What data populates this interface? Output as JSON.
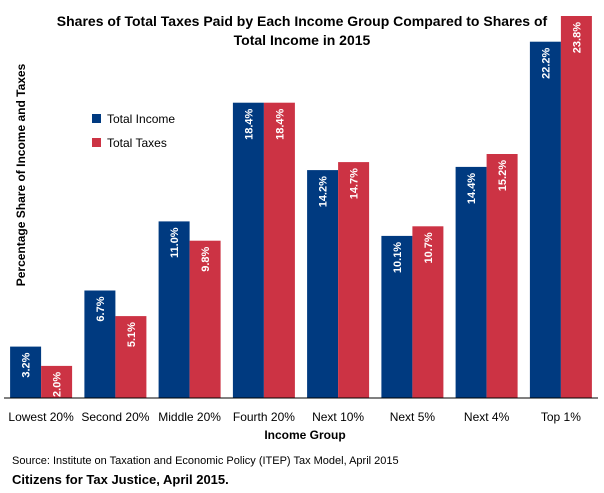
{
  "chart_data": {
    "type": "bar",
    "title_lines": [
      "Shares of Total Taxes Paid by Each Income Group Compared to Shares of",
      "Total Income in 2015"
    ],
    "xlabel": "Income Group",
    "ylabel": "Percentage Share of Income and Taxes",
    "categories": [
      "Lowest 20%",
      "Second 20%",
      "Middle 20%",
      "Fourth 20%",
      "Next 10%",
      "Next 5%",
      "Next 4%",
      "Top 1%"
    ],
    "series": [
      {
        "name": "Total Income",
        "color": "#003a80",
        "values": [
          3.2,
          6.7,
          11.0,
          18.4,
          14.2,
          10.1,
          14.4,
          22.2
        ],
        "labels": [
          "3.2%",
          "6.7%",
          "11.0%",
          "18.4%",
          "14.2%",
          "10.1%",
          "14.4%",
          "22.2%"
        ]
      },
      {
        "name": "Total Taxes",
        "color": "#cc3344",
        "values": [
          2.0,
          5.1,
          9.8,
          18.4,
          14.7,
          10.7,
          15.2,
          23.8
        ],
        "labels": [
          "2.0%",
          "5.1%",
          "9.8%",
          "18.4%",
          "14.7%",
          "10.7%",
          "15.2%",
          "23.8%"
        ]
      }
    ],
    "ylim": [
      0,
      23.8
    ],
    "legend_position": "top-left",
    "grid": false
  },
  "footer": {
    "source": "Source: Institute on Taxation and Economic Policy (ITEP) Tax Model, April 2015",
    "credit": "Citizens for Tax Justice, April 2015."
  }
}
